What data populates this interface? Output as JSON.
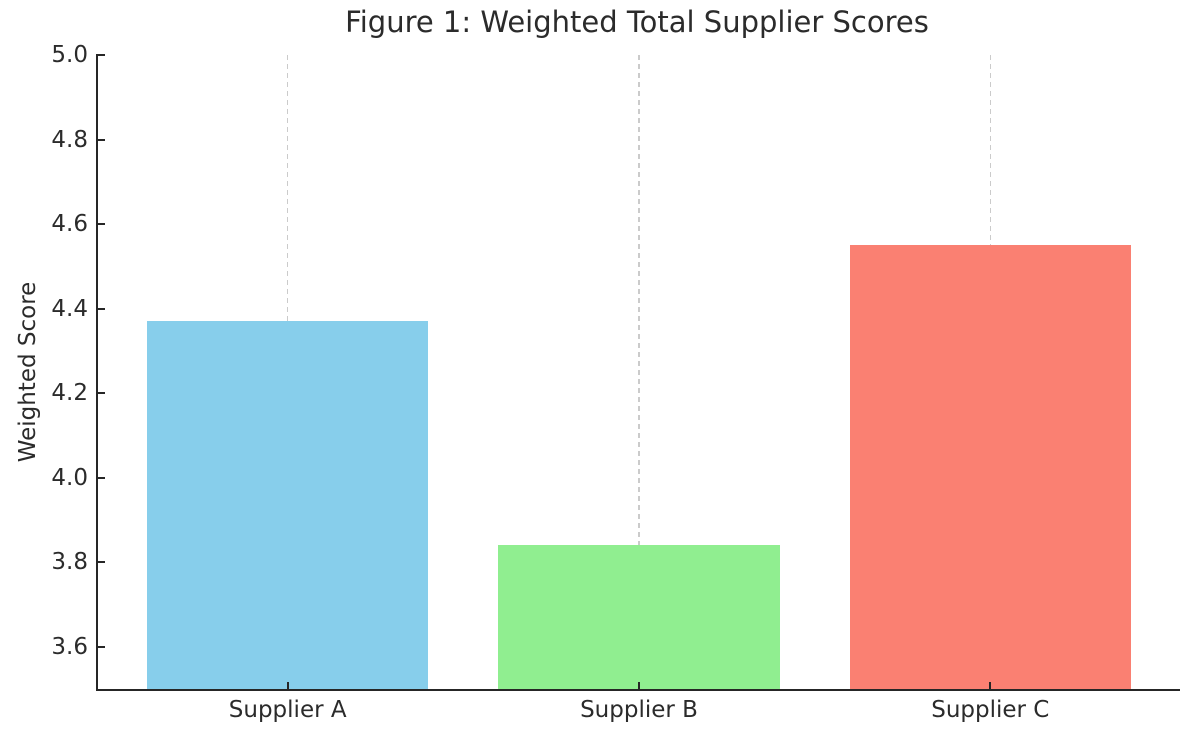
{
  "chart_data": {
    "type": "bar",
    "title": "Figure 1: Weighted Total Supplier Scores",
    "xlabel": "",
    "ylabel": "Weighted Score",
    "categories": [
      "Supplier A",
      "Supplier B",
      "Supplier C"
    ],
    "values": [
      4.37,
      3.84,
      4.55
    ],
    "colors": [
      "#87CEEB",
      "#90EE90",
      "#FA8072"
    ],
    "color_names": [
      "skyblue",
      "lightgreen",
      "salmon"
    ],
    "ylim": [
      3.5,
      5.0
    ],
    "yticks": [
      "3.6",
      "3.8",
      "4.0",
      "4.2",
      "4.4",
      "4.6",
      "4.8",
      "5.0"
    ],
    "xlim": [
      -0.54,
      2.54
    ],
    "x_positions": [
      0,
      1,
      2
    ],
    "bar_width": 0.8,
    "grid": "vertical-dashed-at-bar-centers",
    "grid_color": "#cbcbcb",
    "spine_color": "#262626",
    "text_color": "#2b2b2b",
    "background": "#ffffff",
    "spines": [
      "left",
      "bottom"
    ],
    "tick_direction": "in",
    "legend": "none"
  }
}
